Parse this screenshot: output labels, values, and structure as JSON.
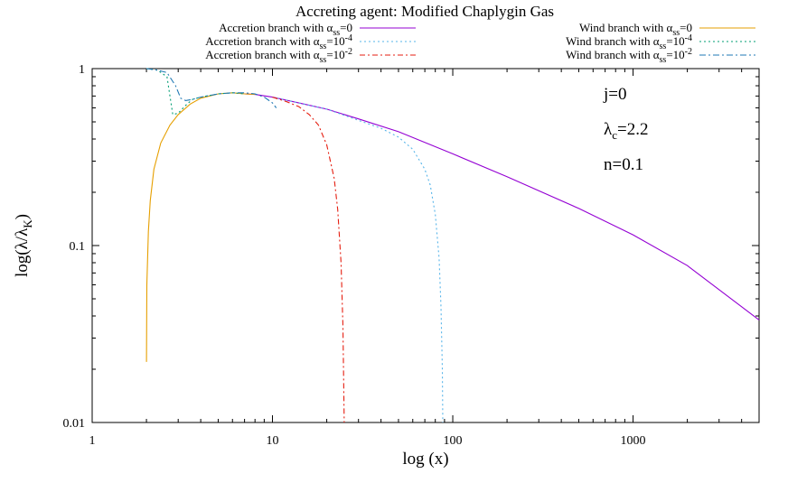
{
  "chart_data": {
    "type": "line",
    "title": "Accreting agent: Modified Chaplygin Gas",
    "xlabel": "log (x)",
    "ylabel": "log(λ/λ",
    "ylabel_sub": "K",
    "ylabel_close": ")",
    "x_scale": "log",
    "y_scale": "log",
    "xlim": [
      1,
      5000
    ],
    "ylim": [
      0.01,
      1
    ],
    "x_ticks": [
      1,
      10,
      100,
      1000
    ],
    "x_tick_labels": [
      "1",
      "10",
      "100",
      "1000"
    ],
    "y_ticks": [
      0.01,
      0.1,
      1
    ],
    "y_tick_labels": [
      "0.01",
      "0.1",
      "1"
    ],
    "grid": false,
    "annotations": [
      {
        "main": "j=0",
        "sub": "",
        "tail": ""
      },
      {
        "main": "λ",
        "sub": "c",
        "tail": "=2.2"
      },
      {
        "main": "n=0.1",
        "sub": "",
        "tail": ""
      }
    ],
    "series": [
      {
        "name": "Accretion branch with α_ss=0",
        "label_main": "Accretion branch with α",
        "label_sub": "ss",
        "label_tail": "=0",
        "label_sup": "",
        "color": "#9400d3",
        "dash": "",
        "x": [
          7,
          8,
          10,
          15,
          20,
          30,
          50,
          100,
          200,
          500,
          1000,
          2000,
          5000
        ],
        "y": [
          0.72,
          0.715,
          0.69,
          0.63,
          0.59,
          0.52,
          0.44,
          0.33,
          0.245,
          0.162,
          0.115,
          0.077,
          0.038
        ]
      },
      {
        "name": "Accretion branch with α_ss=10^-4",
        "label_main": "Accretion branch with α",
        "label_sub": "ss",
        "label_tail": "=10",
        "label_sup": "-4",
        "color": "#56b4e9",
        "dash": "2,3",
        "x": [
          10,
          20,
          30,
          40,
          50,
          60,
          70,
          75,
          80,
          84,
          86,
          87.5,
          88
        ],
        "y": [
          0.69,
          0.59,
          0.51,
          0.46,
          0.41,
          0.35,
          0.27,
          0.22,
          0.15,
          0.085,
          0.045,
          0.02,
          0.01
        ]
      },
      {
        "name": "Accretion branch with α_ss=10^-2",
        "label_main": "Accretion branch with α",
        "label_sub": "ss",
        "label_tail": "=10",
        "label_sup": "-2",
        "color": "#e51e10",
        "dash": "6,3,2,3",
        "x": [
          10,
          12,
          14,
          16,
          18,
          20,
          22,
          23,
          24,
          24.6,
          25
        ],
        "y": [
          0.69,
          0.65,
          0.61,
          0.55,
          0.48,
          0.37,
          0.24,
          0.16,
          0.08,
          0.035,
          0.01
        ]
      },
      {
        "name": "Wind branch with α_ss=0",
        "label_main": "Wind branch with α",
        "label_sub": "ss",
        "label_tail": "=0",
        "label_sup": "",
        "color": "#e69f00",
        "dash": "",
        "x": [
          2.0,
          2.01,
          2.05,
          2.1,
          2.2,
          2.4,
          2.7,
          3.0,
          3.5,
          4.0,
          5.0,
          6.0,
          7.0,
          8.0
        ],
        "y": [
          0.022,
          0.06,
          0.12,
          0.18,
          0.27,
          0.38,
          0.48,
          0.55,
          0.63,
          0.68,
          0.72,
          0.73,
          0.72,
          0.715
        ]
      },
      {
        "name": "Wind branch with α_ss=10^-4",
        "label_main": "Wind branch with α",
        "label_sub": "ss",
        "label_tail": "=10",
        "label_sup": "-4",
        "color": "#009e73",
        "dash": "2,3",
        "x": [
          2.0,
          2.3,
          2.6,
          2.8,
          3.0,
          3.3,
          3.6,
          4.0,
          5.0,
          6.0,
          7.0
        ],
        "y": [
          1.0,
          0.98,
          0.9,
          0.55,
          0.56,
          0.62,
          0.67,
          0.69,
          0.72,
          0.73,
          0.72
        ]
      },
      {
        "name": "Wind branch with α_ss=10^-2",
        "label_main": "Wind branch with α",
        "label_sub": "ss",
        "label_tail": "=10",
        "label_sup": "-2",
        "color": "#1f78b4",
        "dash": "7,3,2,3",
        "x": [
          2.0,
          2.3,
          2.6,
          2.9,
          3.1,
          3.3,
          3.6,
          4.0,
          5.0,
          6.0,
          7.0,
          8.0,
          9.0,
          10.0,
          10.5
        ],
        "y": [
          1.0,
          0.98,
          0.95,
          0.8,
          0.68,
          0.66,
          0.67,
          0.69,
          0.72,
          0.73,
          0.73,
          0.72,
          0.69,
          0.64,
          0.6
        ]
      }
    ]
  }
}
